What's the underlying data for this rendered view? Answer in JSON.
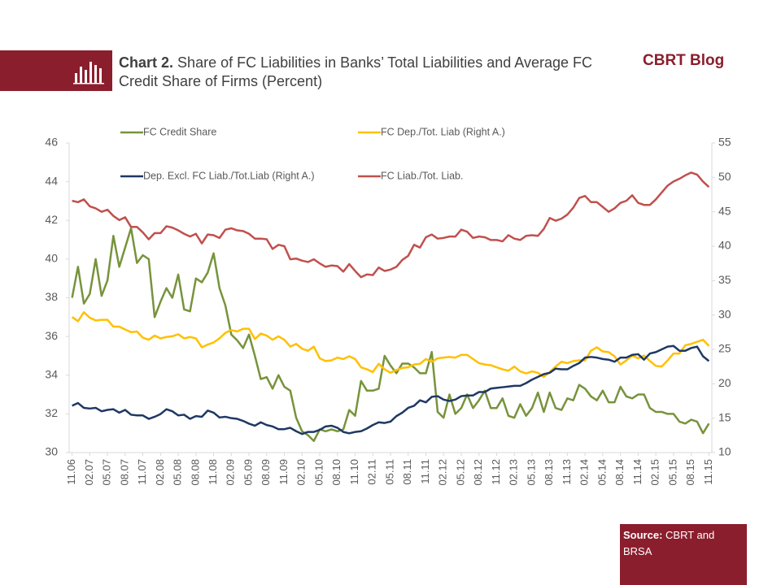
{
  "header": {
    "chart_label": "Chart 2.",
    "title": "Share of FC Liabilities  in Banks’ Total Liabilities and Average FC Credit Share of Firms (Percent)",
    "brand": "CBRT Blog"
  },
  "source": {
    "label": "Source:",
    "text": "CBRT and BRSA"
  },
  "chart_data": {
    "type": "line",
    "categories": [
      "11.06",
      null,
      null,
      "02.07",
      null,
      null,
      "05.07",
      null,
      null,
      "08.07",
      null,
      null,
      "11.07",
      null,
      null,
      "02.08",
      null,
      null,
      "05.08",
      null,
      null,
      "08.08",
      null,
      null,
      "11.08",
      null,
      null,
      "02.09",
      null,
      null,
      "05.09",
      null,
      null,
      "08.09",
      null,
      null,
      "11.09",
      null,
      null,
      "02.10",
      null,
      null,
      "05.10",
      null,
      null,
      "08.10",
      null,
      null,
      "11.10",
      null,
      null,
      "02.11",
      null,
      null,
      "05.11",
      null,
      null,
      "08.11",
      null,
      null,
      "11.11",
      null,
      null,
      "02.12",
      null,
      null,
      "05.12",
      null,
      null,
      "08.12",
      null,
      null,
      "11.12",
      null,
      null,
      "02.13",
      null,
      null,
      "05.13",
      null,
      null,
      "08.13",
      null,
      null,
      "11.13",
      null,
      null,
      "02.14",
      null,
      null,
      "05.14",
      null,
      null,
      "08.14",
      null,
      null,
      "11.14",
      null,
      null,
      "02.15",
      null,
      null,
      "05.15",
      null,
      null,
      "08.15",
      null,
      null,
      "11.15"
    ],
    "ylim": [
      30,
      46
    ],
    "yticks": [
      30,
      32,
      34,
      36,
      38,
      40,
      42,
      44,
      46
    ],
    "y2lim": [
      10,
      55
    ],
    "y2ticks": [
      10,
      15,
      20,
      25,
      30,
      35,
      40,
      45,
      50,
      55
    ],
    "grid": false,
    "series": [
      {
        "name": "FC Credit Share",
        "color": "#77933c",
        "values": [
          38.0,
          39.6,
          37.7,
          38.2,
          40.0,
          38.1,
          38.9,
          41.2,
          39.6,
          40.6,
          41.6,
          39.8,
          40.2,
          40.0,
          37.0,
          37.8,
          38.5,
          38.0,
          39.2,
          37.4,
          37.3,
          39.0,
          38.8,
          39.3,
          40.3,
          38.5,
          37.6,
          36.1,
          35.8,
          35.4,
          36.1,
          35.0,
          33.8,
          33.9,
          33.3,
          34.0,
          33.4,
          33.2,
          31.8,
          31.1,
          30.9,
          30.6,
          31.2,
          31.1,
          31.2,
          31.1,
          31.2,
          32.2,
          31.9,
          33.7,
          33.2,
          33.2,
          33.3,
          35.0,
          34.5,
          34.1,
          34.6,
          34.6,
          34.4,
          34.1,
          34.1,
          35.2,
          32.1,
          31.8,
          33.0,
          32.0,
          32.3,
          33.0,
          32.3,
          32.7,
          33.2,
          32.3,
          32.3,
          32.8,
          31.9,
          31.8,
          32.5,
          31.9,
          32.3,
          33.1,
          32.1,
          33.1,
          32.3,
          32.2,
          32.8,
          32.7,
          33.5,
          33.3,
          32.9,
          32.7,
          33.2,
          32.6,
          32.6,
          33.4,
          32.9,
          32.8,
          33.0,
          33.0,
          32.3,
          32.1,
          32.1,
          32.0,
          32.0,
          31.6,
          31.5,
          31.7,
          31.6,
          31.0,
          31.5
        ]
      },
      {
        "name": "FC Dep./Tot. Liab (Right A.)",
        "color": "#ffc000",
        "axis": "y2",
        "values": [
          29.7,
          29.1,
          30.4,
          29.6,
          29.2,
          29.3,
          29.3,
          28.3,
          28.3,
          27.9,
          27.5,
          27.6,
          26.7,
          26.4,
          27.0,
          26.6,
          26.8,
          26.9,
          27.2,
          26.6,
          26.8,
          26.6,
          25.3,
          25.7,
          26.0,
          26.6,
          27.4,
          27.8,
          27.6,
          28.0,
          28.0,
          26.5,
          27.3,
          27.0,
          26.4,
          26.9,
          26.4,
          25.4,
          25.8,
          25.1,
          24.8,
          25.4,
          23.7,
          23.3,
          23.4,
          23.8,
          23.6,
          24.0,
          23.6,
          22.4,
          22.1,
          21.7,
          22.9,
          22.1,
          21.6,
          22.0,
          22.3,
          22.4,
          22.8,
          22.9,
          23.6,
          23.2,
          23.7,
          23.8,
          23.9,
          23.8,
          24.2,
          24.2,
          23.6,
          23.0,
          22.8,
          22.7,
          22.4,
          22.1,
          21.9,
          22.5,
          21.8,
          21.5,
          21.8,
          21.6,
          21.0,
          21.7,
          22.5,
          23.2,
          23.0,
          23.3,
          23.4,
          23.4,
          24.8,
          25.3,
          24.7,
          24.6,
          24.0,
          22.8,
          23.4,
          24.1,
          23.7,
          24.1,
          23.3,
          22.6,
          22.5,
          23.4,
          24.4,
          24.4,
          25.6,
          25.8,
          26.1,
          26.4,
          25.5
        ]
      },
      {
        "name": "Dep. Excl. FC Liab./Tot.Liab (Right A.)",
        "color": "#1f3864",
        "axis": "y2",
        "values": [
          16.8,
          17.2,
          16.5,
          16.4,
          16.5,
          16.0,
          16.2,
          16.3,
          15.8,
          16.2,
          15.5,
          15.4,
          15.4,
          14.9,
          15.2,
          15.6,
          16.3,
          16.0,
          15.4,
          15.5,
          14.9,
          15.3,
          15.2,
          16.1,
          15.8,
          15.1,
          15.2,
          15.0,
          14.9,
          14.6,
          14.2,
          13.9,
          14.4,
          14.0,
          13.8,
          13.4,
          13.4,
          13.6,
          13.1,
          12.7,
          13.0,
          13.0,
          13.3,
          13.8,
          13.9,
          13.6,
          13.0,
          12.8,
          13.0,
          13.1,
          13.5,
          14.0,
          14.4,
          14.3,
          14.5,
          15.3,
          15.8,
          16.5,
          16.8,
          17.6,
          17.3,
          18.1,
          18.2,
          17.7,
          17.5,
          17.7,
          18.2,
          18.3,
          18.3,
          18.8,
          18.8,
          19.3,
          19.4,
          19.5,
          19.6,
          19.7,
          19.7,
          20.1,
          20.6,
          21.0,
          21.4,
          21.6,
          22.2,
          22.1,
          22.1,
          22.6,
          23.0,
          23.8,
          23.9,
          23.8,
          23.6,
          23.5,
          23.2,
          23.8,
          23.8,
          24.2,
          24.3,
          23.5,
          24.4,
          24.6,
          25.0,
          25.4,
          25.5,
          24.8,
          24.8,
          25.2,
          25.4,
          24.0,
          23.3
        ]
      },
      {
        "name": "FC Liab./Tot. Liab.",
        "color": "#c0504d",
        "axis": "y2",
        "values": [
          46.6,
          46.4,
          46.8,
          45.8,
          45.5,
          45.0,
          45.3,
          44.4,
          43.8,
          44.2,
          42.8,
          42.8,
          42.0,
          41.0,
          41.9,
          41.9,
          42.9,
          42.7,
          42.3,
          41.8,
          41.4,
          41.8,
          40.4,
          41.7,
          41.6,
          41.2,
          42.4,
          42.6,
          42.3,
          42.2,
          41.8,
          41.1,
          41.1,
          41.0,
          39.6,
          40.2,
          40.0,
          38.1,
          38.2,
          37.9,
          37.7,
          38.1,
          37.5,
          37.0,
          37.2,
          37.1,
          36.3,
          37.4,
          36.4,
          35.5,
          35.9,
          35.8,
          36.9,
          36.4,
          36.6,
          37.0,
          38.0,
          38.6,
          40.2,
          39.8,
          41.3,
          41.7,
          41.1,
          41.2,
          41.4,
          41.4,
          42.4,
          42.1,
          41.2,
          41.4,
          41.3,
          40.9,
          40.9,
          40.7,
          41.6,
          41.1,
          40.9,
          41.5,
          41.6,
          41.5,
          42.5,
          44.1,
          43.7,
          44.0,
          44.6,
          45.6,
          47.0,
          47.3,
          46.4,
          46.4,
          45.7,
          45.0,
          45.5,
          46.3,
          46.6,
          47.4,
          46.3,
          46.0,
          46.0,
          46.8,
          47.8,
          48.8,
          49.4,
          49.8,
          50.3,
          50.7,
          50.4,
          49.4,
          48.6
        ]
      }
    ]
  }
}
